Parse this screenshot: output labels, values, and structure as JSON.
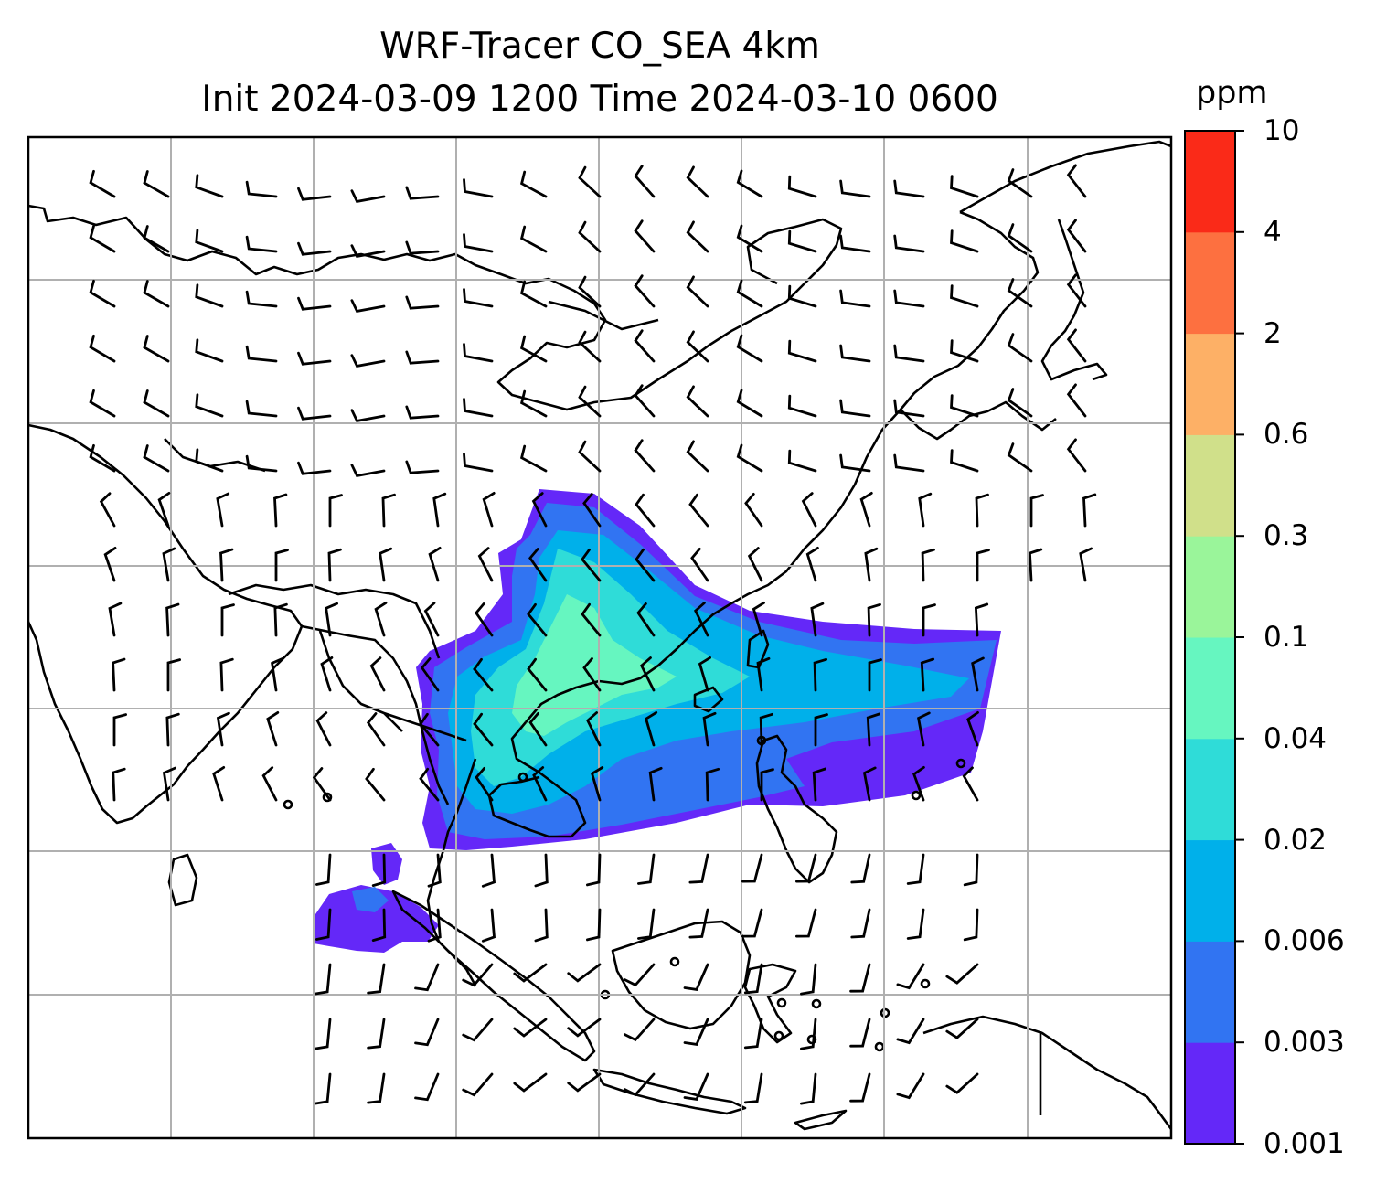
{
  "figure": {
    "title_line1": "WRF-Tracer CO_SEA 4km",
    "title_line2": "Init 2024-03-09 1200 Time 2024-03-10 0600"
  },
  "colorbar": {
    "unit": "ppm",
    "levels": [
      "0.001",
      "0.003",
      "0.006",
      "0.02",
      "0.04",
      "0.1",
      "0.3",
      "0.6",
      "2",
      "4",
      "10"
    ],
    "colors": [
      "#6428f8",
      "#3174f2",
      "#00b0ea",
      "#2fdcd8",
      "#66f6c0",
      "#9af59a",
      "#d0e08a",
      "#fdb066",
      "#fd7040",
      "#fa2a18"
    ]
  },
  "map": {
    "gridlines": "on",
    "coastline_color": "#000000",
    "wind_barbs": "on",
    "plume_color_scale": "rainbow"
  }
}
